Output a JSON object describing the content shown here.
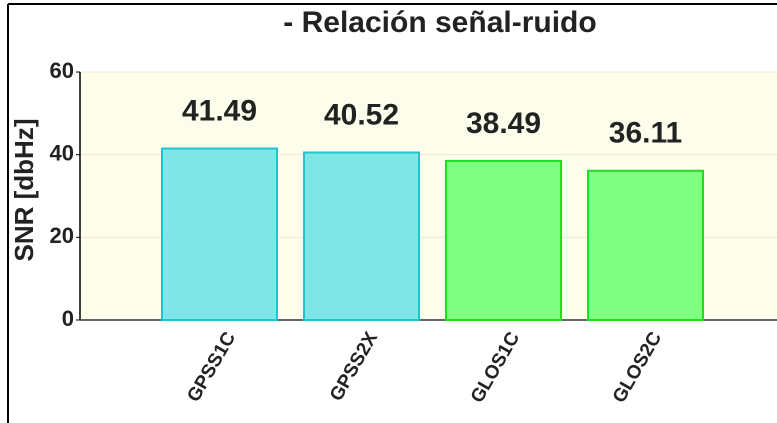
{
  "chart_data": {
    "type": "bar",
    "title": "- Relación señal-ruido",
    "ylabel": "SNR [dbHz]",
    "categories": [
      "GPSS1C",
      "GPSS2X",
      "GLOS1C",
      "GLOS2C"
    ],
    "values": [
      41.49,
      40.52,
      38.49,
      36.11
    ],
    "colors": [
      "#7fe6e8",
      "#7fe6e8",
      "#80ff80",
      "#80ff80"
    ],
    "edge_colors": [
      "#20c4cc",
      "#20c4cc",
      "#22dd22",
      "#22dd22"
    ],
    "ylim": [
      0,
      60
    ],
    "yticks": [
      0,
      20,
      40,
      60
    ],
    "grid": true
  }
}
